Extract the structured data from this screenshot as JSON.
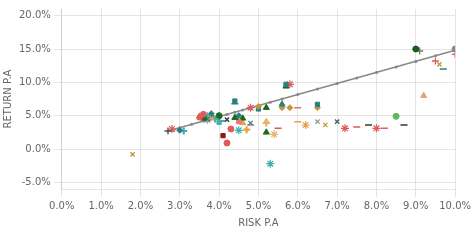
{
  "chart_data": {
    "type": "scatter",
    "xlabel": "RISK P.A",
    "ylabel": "RETURN P.A",
    "xlim": [
      0.0,
      0.1
    ],
    "ylim": [
      -0.06,
      0.21
    ],
    "xticks": [
      {
        "value": 0.0,
        "label": "0.0%"
      },
      {
        "value": 0.01,
        "label": "1.0%"
      },
      {
        "value": 0.02,
        "label": "2.0%"
      },
      {
        "value": 0.03,
        "label": "3.0%"
      },
      {
        "value": 0.04,
        "label": "4.0%"
      },
      {
        "value": 0.05,
        "label": "5.0%"
      },
      {
        "value": 0.06,
        "label": "6.0%"
      },
      {
        "value": 0.07,
        "label": "7.0%"
      },
      {
        "value": 0.08,
        "label": "8.0%"
      },
      {
        "value": 0.09,
        "label": "9.0%"
      },
      {
        "value": 0.1,
        "label": "10.0%"
      }
    ],
    "yticks": [
      {
        "value": -0.05,
        "label": "-5.0%"
      },
      {
        "value": 0.0,
        "label": "0.0%"
      },
      {
        "value": 0.05,
        "label": "5.0%"
      },
      {
        "value": 0.1,
        "label": "10.0%"
      },
      {
        "value": 0.15,
        "label": "15.0%"
      },
      {
        "value": 0.2,
        "label": "20.0%"
      }
    ],
    "grid": true,
    "series": [
      {
        "type": "line",
        "color": "#888888",
        "x": [
          0.027,
          0.1
        ],
        "values": [
          0.027,
          0.148
        ]
      },
      {
        "type": "scatter",
        "marker": "o",
        "color": "#888888",
        "x": [
          0.027,
          0.03,
          0.033,
          0.036,
          0.038,
          0.04,
          0.042,
          0.044,
          0.046,
          0.048,
          0.05,
          0.053,
          0.056,
          0.06,
          0.065,
          0.07,
          0.075,
          0.08,
          0.085,
          0.09,
          0.095,
          0.1
        ],
        "values": [
          0.027,
          0.031973,
          0.036945,
          0.041918,
          0.045233,
          0.048548,
          0.051863,
          0.055178,
          0.058493,
          0.061808,
          0.065123,
          0.070096,
          0.075068,
          0.081699,
          0.089986,
          0.098274,
          0.106562,
          0.114849,
          0.123137,
          0.131425,
          0.139712,
          0.148
        ]
      },
      {
        "type": "scatter",
        "marker": "x",
        "color": "#c8943a",
        "x": [
          0.018
        ],
        "values": [
          -0.008
        ]
      },
      {
        "type": "scatter",
        "marker": "+",
        "color": "#555555",
        "x": [
          0.027
        ],
        "values": [
          0.027
        ]
      },
      {
        "type": "scatter",
        "marker": "*",
        "color": "#e05a5a",
        "x": [
          0.028
        ],
        "values": [
          0.03
        ]
      },
      {
        "type": "scatter",
        "marker": "_",
        "color": "#999999",
        "x": [
          0.028
        ],
        "values": [
          0.027
        ]
      },
      {
        "type": "scatter",
        "marker": "D",
        "color": "#2a8080",
        "x": [
          0.03
        ],
        "values": [
          0.028
        ]
      },
      {
        "type": "scatter",
        "marker": "P",
        "color": "#40b0b0",
        "x": [
          0.031
        ],
        "values": [
          0.027
        ]
      },
      {
        "type": "scatter",
        "marker": "s",
        "color": "#e05a5a",
        "x": [
          0.035
        ],
        "values": [
          0.047
        ]
      },
      {
        "type": "scatter",
        "marker": "^",
        "color": "#e05a5a",
        "x": [
          0.035
        ],
        "values": [
          0.049
        ]
      },
      {
        "type": "scatter",
        "marker": "o",
        "color": "#e05a5a",
        "x": [
          0.036
        ],
        "values": [
          0.052
        ]
      },
      {
        "type": "scatter",
        "marker": "o",
        "color": "#1a6a1a",
        "x": [
          0.036
        ],
        "values": [
          0.048
        ]
      },
      {
        "type": "scatter",
        "marker": "^",
        "color": "#1a6a1a",
        "x": [
          0.036
        ],
        "values": [
          0.046
        ]
      },
      {
        "type": "scatter",
        "marker": "x",
        "color": "#2a8080",
        "x": [
          0.037
        ],
        "values": [
          0.045
        ]
      },
      {
        "type": "scatter",
        "marker": "+",
        "color": "#40b0b0",
        "x": [
          0.037
        ],
        "values": [
          0.05
        ]
      },
      {
        "type": "scatter",
        "marker": "*",
        "color": "#999999",
        "x": [
          0.037
        ],
        "values": [
          0.044
        ]
      },
      {
        "type": "scatter",
        "marker": "_",
        "color": "#e05a5a",
        "x": [
          0.037
        ],
        "values": [
          0.042
        ]
      },
      {
        "type": "scatter",
        "marker": "D",
        "color": "#2a8080",
        "x": [
          0.038
        ],
        "values": [
          0.053
        ]
      },
      {
        "type": "scatter",
        "marker": "^",
        "color": "#e8a04a",
        "x": [
          0.038
        ],
        "values": [
          0.046
        ]
      },
      {
        "type": "scatter",
        "marker": "s",
        "color": "#3a9a6a",
        "x": [
          0.038
        ],
        "values": [
          0.049
        ]
      },
      {
        "type": "scatter",
        "marker": "P",
        "color": "#40b0b0",
        "x": [
          0.039
        ],
        "values": [
          0.045
        ]
      },
      {
        "type": "scatter",
        "marker": "o",
        "color": "#1a6a1a",
        "x": [
          0.04
        ],
        "values": [
          0.05
        ]
      },
      {
        "type": "scatter",
        "marker": "D",
        "color": "#5a6a9a",
        "x": [
          0.04
        ],
        "values": [
          0.048
        ]
      },
      {
        "type": "scatter",
        "marker": "s",
        "color": "#40b0b0",
        "x": [
          0.04
        ],
        "values": [
          0.04
        ]
      },
      {
        "type": "scatter",
        "marker": "s",
        "color": "#8a1a1a",
        "x": [
          0.041
        ],
        "values": [
          0.02
        ]
      },
      {
        "type": "scatter",
        "marker": "_",
        "color": "#2a8080",
        "x": [
          0.041
        ],
        "values": [
          0.042
        ]
      },
      {
        "type": "scatter",
        "marker": "o",
        "color": "#e05a5a",
        "x": [
          0.042
        ],
        "values": [
          0.009
        ]
      },
      {
        "type": "scatter",
        "marker": "x",
        "color": "#333333",
        "x": [
          0.042
        ],
        "values": [
          0.044
        ]
      },
      {
        "type": "scatter",
        "marker": "o",
        "color": "#e05a5a",
        "x": [
          0.043
        ],
        "values": [
          0.03
        ]
      },
      {
        "type": "scatter",
        "marker": "s",
        "color": "#2a8080",
        "x": [
          0.044
        ],
        "values": [
          0.072
        ]
      },
      {
        "type": "scatter",
        "marker": "_",
        "color": "#2a8080",
        "x": [
          0.044
        ],
        "values": [
          0.068
        ]
      },
      {
        "type": "scatter",
        "marker": "^",
        "color": "#1a6a1a",
        "x": [
          0.044
        ],
        "values": [
          0.047
        ]
      },
      {
        "type": "scatter",
        "marker": "s",
        "color": "#e07a7a",
        "x": [
          0.045
        ],
        "values": [
          0.041
        ]
      },
      {
        "type": "scatter",
        "marker": "*",
        "color": "#40b0b0",
        "x": [
          0.045
        ],
        "values": [
          0.028
        ]
      },
      {
        "type": "scatter",
        "marker": "D",
        "color": "#2a8080",
        "x": [
          0.045
        ],
        "values": [
          0.05
        ]
      },
      {
        "type": "scatter",
        "marker": "^",
        "color": "#1a6a1a",
        "x": [
          0.046
        ],
        "values": [
          0.046
        ]
      },
      {
        "type": "scatter",
        "marker": "^",
        "color": "#e8a04a",
        "x": [
          0.046
        ],
        "values": [
          0.039
        ]
      },
      {
        "type": "scatter",
        "marker": "P",
        "color": "#e8a04a",
        "x": [
          0.047
        ],
        "values": [
          0.029
        ]
      },
      {
        "type": "scatter",
        "marker": "x",
        "color": "#2a8080",
        "x": [
          0.048
        ],
        "values": [
          0.039
        ]
      },
      {
        "type": "scatter",
        "marker": "_",
        "color": "#c87a7a",
        "x": [
          0.048
        ],
        "values": [
          0.036
        ]
      },
      {
        "type": "scatter",
        "marker": "*",
        "color": "#e05a5a",
        "x": [
          0.048
        ],
        "values": [
          0.062
        ]
      },
      {
        "type": "scatter",
        "marker": "D",
        "color": "#c8943a",
        "x": [
          0.05
        ],
        "values": [
          0.064
        ]
      },
      {
        "type": "scatter",
        "marker": "s",
        "color": "#2a8080",
        "x": [
          0.05
        ],
        "values": [
          0.06
        ]
      },
      {
        "type": "scatter",
        "marker": "^",
        "color": "#e8b46a",
        "x": [
          0.052
        ],
        "values": [
          0.041
        ]
      },
      {
        "type": "scatter",
        "marker": "^",
        "color": "#1a6a1a",
        "x": [
          0.052
        ],
        "values": [
          0.025
        ]
      },
      {
        "type": "scatter",
        "marker": "^",
        "color": "#1a6a1a",
        "x": [
          0.052
        ],
        "values": [
          0.062
        ]
      },
      {
        "type": "scatter",
        "marker": "P",
        "color": "#e8b46a",
        "x": [
          0.052
        ],
        "values": [
          0.039
        ]
      },
      {
        "type": "scatter",
        "marker": "*",
        "color": "#40b0b0",
        "x": [
          0.053
        ],
        "values": [
          -0.022
        ]
      },
      {
        "type": "scatter",
        "marker": "*",
        "color": "#e8b46a",
        "x": [
          0.054
        ],
        "values": [
          0.022
        ]
      },
      {
        "type": "scatter",
        "marker": "_",
        "color": "#e05a5a",
        "x": [
          0.055
        ],
        "values": [
          0.031
        ]
      },
      {
        "type": "scatter",
        "marker": "^",
        "color": "#2a8080",
        "x": [
          0.056
        ],
        "values": [
          0.067
        ]
      },
      {
        "type": "scatter",
        "marker": "D",
        "color": "#c8943a",
        "x": [
          0.056
        ],
        "values": [
          0.062
        ]
      },
      {
        "type": "scatter",
        "marker": "s",
        "color": "#2a8080",
        "x": [
          0.057
        ],
        "values": [
          0.097
        ]
      },
      {
        "type": "scatter",
        "marker": "^",
        "color": "#1a6a1a",
        "x": [
          0.057
        ],
        "values": [
          0.094
        ]
      },
      {
        "type": "scatter",
        "marker": "D",
        "color": "#c8943a",
        "x": [
          0.058
        ],
        "values": [
          0.062
        ]
      },
      {
        "type": "scatter",
        "marker": "*",
        "color": "#e05a5a",
        "x": [
          0.058
        ],
        "values": [
          0.097
        ]
      },
      {
        "type": "scatter",
        "marker": "_",
        "color": "#c87a7a",
        "x": [
          0.06
        ],
        "values": [
          0.062
        ]
      },
      {
        "type": "scatter",
        "marker": "_",
        "color": "#e8a04a",
        "x": [
          0.06
        ],
        "values": [
          0.041
        ]
      },
      {
        "type": "scatter",
        "marker": "*",
        "color": "#e8a04a",
        "x": [
          0.062
        ],
        "values": [
          0.036
        ]
      },
      {
        "type": "scatter",
        "marker": "s",
        "color": "#2a8080",
        "x": [
          0.065
        ],
        "values": [
          0.067
        ]
      },
      {
        "type": "scatter",
        "marker": "D",
        "color": "#c8943a",
        "x": [
          0.065
        ],
        "values": [
          0.062
        ]
      },
      {
        "type": "scatter",
        "marker": "x",
        "color": "#999999",
        "x": [
          0.065
        ],
        "values": [
          0.041
        ]
      },
      {
        "type": "scatter",
        "marker": "x",
        "color": "#c8943a",
        "x": [
          0.067
        ],
        "values": [
          0.036
        ]
      },
      {
        "type": "scatter",
        "marker": "x",
        "color": "#555555",
        "x": [
          0.07
        ],
        "values": [
          0.041
        ]
      },
      {
        "type": "scatter",
        "marker": "*",
        "color": "#e05a5a",
        "x": [
          0.072
        ],
        "values": [
          0.031
        ]
      },
      {
        "type": "scatter",
        "marker": "_",
        "color": "#e05a5a",
        "x": [
          0.075
        ],
        "values": [
          0.033
        ]
      },
      {
        "type": "scatter",
        "marker": "_",
        "color": "#333333",
        "x": [
          0.078
        ],
        "values": [
          0.036
        ]
      },
      {
        "type": "scatter",
        "marker": "*",
        "color": "#e05a5a",
        "x": [
          0.08
        ],
        "values": [
          0.031
        ]
      },
      {
        "type": "scatter",
        "marker": "_",
        "color": "#e05a5a",
        "x": [
          0.082
        ],
        "values": [
          0.031
        ]
      },
      {
        "type": "scatter",
        "marker": "o",
        "color": "#5aba5a",
        "x": [
          0.085
        ],
        "values": [
          0.049
        ]
      },
      {
        "type": "scatter",
        "marker": "_",
        "color": "#333333",
        "x": [
          0.087
        ],
        "values": [
          0.036
        ]
      },
      {
        "type": "scatter",
        "marker": "o",
        "color": "#1a5a1a",
        "x": [
          0.09
        ],
        "values": [
          0.15
        ]
      },
      {
        "type": "scatter",
        "marker": "+",
        "color": "#777777",
        "x": [
          0.091
        ],
        "values": [
          0.147
        ]
      },
      {
        "type": "scatter",
        "marker": "^",
        "color": "#e8a07a",
        "x": [
          0.092
        ],
        "values": [
          0.08
        ]
      },
      {
        "type": "scatter",
        "marker": "+",
        "color": "#e05a5a",
        "x": [
          0.095
        ],
        "values": [
          0.132
        ]
      },
      {
        "type": "scatter",
        "marker": "x",
        "color": "#c8943a",
        "x": [
          0.096
        ],
        "values": [
          0.127
        ]
      },
      {
        "type": "scatter",
        "marker": "_",
        "color": "#2a8080",
        "x": [
          0.097
        ],
        "values": [
          0.12
        ]
      },
      {
        "type": "scatter",
        "marker": "o",
        "color": "#888888",
        "x": [
          0.1
        ],
        "values": [
          0.15
        ]
      },
      {
        "type": "scatter",
        "marker": "+",
        "color": "#e05a5a",
        "x": [
          0.1
        ],
        "values": [
          0.142
        ]
      }
    ]
  }
}
